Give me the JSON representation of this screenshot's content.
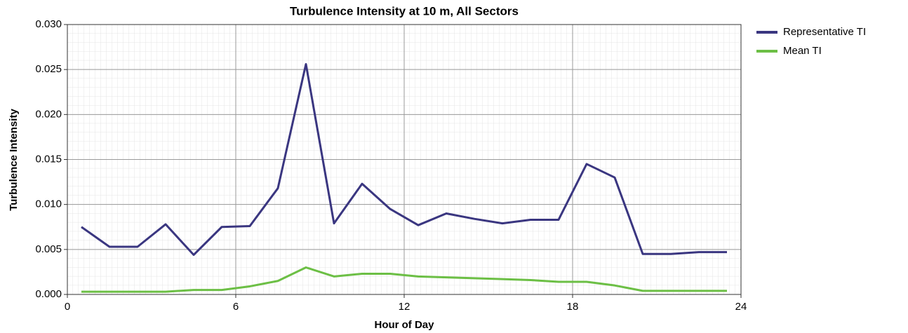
{
  "chart_data": {
    "type": "line",
    "title": "Turbulence Intensity at 10 m, All Sectors",
    "x_label": "Hour of Day",
    "y_label": "Turbulence Intensity",
    "x": [
      0.5,
      1.5,
      2.5,
      3.5,
      4.5,
      5.5,
      6.5,
      7.5,
      8.5,
      9.5,
      10.5,
      11.5,
      12.5,
      13.5,
      14.5,
      15.5,
      16.5,
      17.5,
      18.5,
      19.5,
      20.5,
      21.5,
      22.5,
      23.5
    ],
    "series": [
      {
        "name": "Representative TI",
        "color": "#3a3680",
        "values": [
          0.0075,
          0.0053,
          0.0053,
          0.0078,
          0.0044,
          0.0075,
          0.0076,
          0.0118,
          0.0256,
          0.0079,
          0.0123,
          0.0095,
          0.0077,
          0.009,
          0.0084,
          0.0079,
          0.0083,
          0.0083,
          0.0145,
          0.013,
          0.0045,
          0.0045,
          0.0047,
          0.0047
        ]
      },
      {
        "name": "Mean TI",
        "color": "#6cbf45",
        "values": [
          0.0003,
          0.0003,
          0.0003,
          0.0003,
          0.0005,
          0.0005,
          0.0009,
          0.0015,
          0.003,
          0.002,
          0.0023,
          0.0023,
          0.002,
          0.0019,
          0.0018,
          0.0017,
          0.0016,
          0.0014,
          0.0014,
          0.001,
          0.0004,
          0.0004,
          0.0004,
          0.0004
        ]
      }
    ],
    "xlim": [
      0,
      24
    ],
    "xticks": [
      0,
      6,
      12,
      18,
      24
    ],
    "ylim": [
      0,
      0.03
    ],
    "yticks": [
      {
        "value": 0,
        "label": "0.000"
      },
      0.005,
      {
        "value": 0.01,
        "label": "0.010"
      },
      0.015,
      {
        "value": 0.02,
        "label": "0.020"
      },
      0.025,
      {
        "value": 0.03,
        "label": "0.030"
      }
    ],
    "grid": true,
    "legend": "right"
  }
}
